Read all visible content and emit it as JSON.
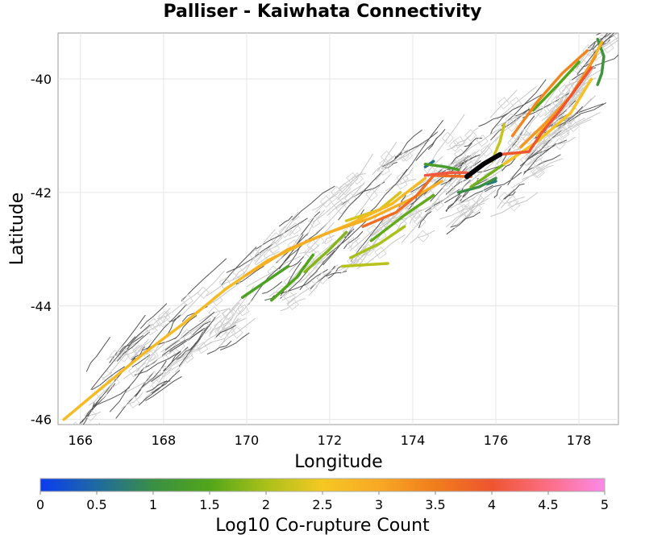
{
  "chart_data": {
    "type": "map",
    "title": "Palliser - Kaiwhata Connectivity",
    "xlabel": "Longitude",
    "ylabel": "Latitude",
    "xlim": [
      165.46,
      178.95
    ],
    "ylim": [
      -46.09,
      -39.19
    ],
    "xticks": [
      166,
      168,
      170,
      172,
      174,
      176,
      178
    ],
    "yticks": [
      -40,
      -42,
      -44,
      -46
    ],
    "grid": true,
    "colorbar": {
      "label": "Log10 Co-rupture Count",
      "range": [
        0,
        5
      ],
      "ticks": [
        "0",
        "0.5",
        "1",
        "1.5",
        "2",
        "2.5",
        "3",
        "3.5",
        "4",
        "4.5",
        "5"
      ],
      "stops": [
        {
          "v": 0,
          "color": "#0a3cf0"
        },
        {
          "v": 0.5,
          "color": "#1f6aa0"
        },
        {
          "v": 1,
          "color": "#3a8f45"
        },
        {
          "v": 1.5,
          "color": "#52a61a"
        },
        {
          "v": 2,
          "color": "#a9c11a"
        },
        {
          "v": 2.5,
          "color": "#f5c823"
        },
        {
          "v": 3,
          "color": "#f8a825"
        },
        {
          "v": 3.5,
          "color": "#f07d1c"
        },
        {
          "v": 4,
          "color": "#ee5530"
        },
        {
          "v": 4.5,
          "color": "#fd6e85"
        },
        {
          "v": 5,
          "color": "#fc8ae8"
        }
      ]
    },
    "selected_fault": {
      "color": "#000000",
      "points": [
        [
          175.3,
          -41.72
        ],
        [
          175.7,
          -41.5
        ],
        [
          176.1,
          -41.33
        ]
      ]
    },
    "ruptures": [
      {
        "value": 2.7,
        "points": [
          [
            165.6,
            -46.0
          ],
          [
            166.5,
            -45.45
          ],
          [
            167.5,
            -44.85
          ],
          [
            168.5,
            -44.3
          ],
          [
            169.5,
            -43.7
          ],
          [
            170.5,
            -43.2
          ],
          [
            171.5,
            -42.85
          ],
          [
            172.5,
            -42.55
          ],
          [
            173.5,
            -42.2
          ],
          [
            174.3,
            -41.75
          ]
        ]
      },
      {
        "value": 2.9,
        "points": [
          [
            170.0,
            -43.45
          ],
          [
            171.0,
            -43.0
          ],
          [
            172.0,
            -42.7
          ],
          [
            173.0,
            -42.45
          ],
          [
            174.0,
            -42.1
          ],
          [
            174.7,
            -41.8
          ]
        ]
      },
      {
        "value": 3.7,
        "points": [
          [
            172.8,
            -42.6
          ],
          [
            173.6,
            -42.35
          ],
          [
            174.1,
            -42.05
          ],
          [
            174.5,
            -41.7
          ],
          [
            175.4,
            -41.72
          ]
        ]
      },
      {
        "value": 4.1,
        "points": [
          [
            174.3,
            -41.7
          ],
          [
            174.9,
            -41.65
          ],
          [
            175.3,
            -41.65
          ]
        ]
      },
      {
        "value": 4.0,
        "points": [
          [
            176.1,
            -41.33
          ],
          [
            176.8,
            -41.28
          ],
          [
            177.1,
            -40.95
          ],
          [
            177.5,
            -40.6
          ],
          [
            177.9,
            -40.2
          ],
          [
            178.3,
            -39.8
          ]
        ]
      },
      {
        "value": 3.2,
        "points": [
          [
            176.6,
            -41.2
          ],
          [
            177.3,
            -40.7
          ],
          [
            177.8,
            -40.3
          ],
          [
            178.4,
            -39.6
          ]
        ]
      },
      {
        "value": 2.8,
        "points": [
          [
            177.0,
            -41.0
          ],
          [
            177.6,
            -40.5
          ],
          [
            178.1,
            -40.0
          ],
          [
            178.55,
            -39.35
          ]
        ]
      },
      {
        "value": 2.6,
        "points": [
          [
            176.2,
            -41.5
          ],
          [
            177.0,
            -41.1
          ],
          [
            177.8,
            -40.6
          ],
          [
            178.3,
            -40.0
          ]
        ]
      },
      {
        "value": 3.4,
        "points": [
          [
            176.4,
            -41.0
          ],
          [
            177.0,
            -40.4
          ],
          [
            177.6,
            -39.9
          ],
          [
            178.2,
            -39.5
          ]
        ]
      },
      {
        "value": 1.5,
        "points": [
          [
            176.9,
            -40.55
          ],
          [
            177.5,
            -40.1
          ],
          [
            178.0,
            -39.7
          ]
        ]
      },
      {
        "value": 1.1,
        "points": [
          [
            178.45,
            -39.3
          ],
          [
            178.6,
            -39.6
          ],
          [
            178.55,
            -39.9
          ],
          [
            178.45,
            -40.1
          ]
        ]
      },
      {
        "value": 2.0,
        "points": [
          [
            172.5,
            -43.15
          ],
          [
            173.2,
            -42.9
          ],
          [
            173.8,
            -42.6
          ]
        ]
      },
      {
        "value": 1.4,
        "points": [
          [
            169.9,
            -43.85
          ],
          [
            170.5,
            -43.55
          ],
          [
            171.0,
            -43.3
          ]
        ]
      },
      {
        "value": 2.1,
        "points": [
          [
            172.3,
            -43.3
          ],
          [
            173.4,
            -43.25
          ]
        ]
      },
      {
        "value": 1.6,
        "points": [
          [
            173.0,
            -42.85
          ],
          [
            173.8,
            -42.4
          ],
          [
            174.5,
            -42.05
          ]
        ]
      },
      {
        "value": 1.3,
        "points": [
          [
            174.3,
            -41.5
          ],
          [
            174.8,
            -41.55
          ],
          [
            175.1,
            -41.6
          ]
        ]
      },
      {
        "value": 1.0,
        "points": [
          [
            175.1,
            -42.0
          ],
          [
            175.6,
            -41.9
          ],
          [
            176.0,
            -41.75
          ]
        ]
      },
      {
        "value": 1.7,
        "points": [
          [
            175.4,
            -41.9
          ],
          [
            176.0,
            -41.6
          ],
          [
            176.6,
            -41.3
          ]
        ]
      },
      {
        "value": 2.2,
        "points": [
          [
            175.9,
            -41.45
          ],
          [
            176.1,
            -41.1
          ],
          [
            176.2,
            -40.8
          ]
        ]
      },
      {
        "value": 0.6,
        "points": [
          [
            174.3,
            -41.55
          ],
          [
            174.5,
            -41.45
          ]
        ]
      },
      {
        "value": 0.7,
        "points": [
          [
            175.8,
            -41.85
          ],
          [
            176.0,
            -41.8
          ]
        ]
      },
      {
        "value": 1.5,
        "points": [
          [
            170.6,
            -43.9
          ],
          [
            171.2,
            -43.5
          ],
          [
            171.6,
            -43.1
          ]
        ]
      },
      {
        "value": 1.8,
        "points": [
          [
            171.4,
            -43.4
          ],
          [
            172.0,
            -43.0
          ],
          [
            172.4,
            -42.7
          ]
        ]
      },
      {
        "value": 2.3,
        "points": [
          [
            172.4,
            -42.5
          ],
          [
            173.2,
            -42.3
          ],
          [
            173.7,
            -42.0
          ]
        ]
      }
    ]
  }
}
